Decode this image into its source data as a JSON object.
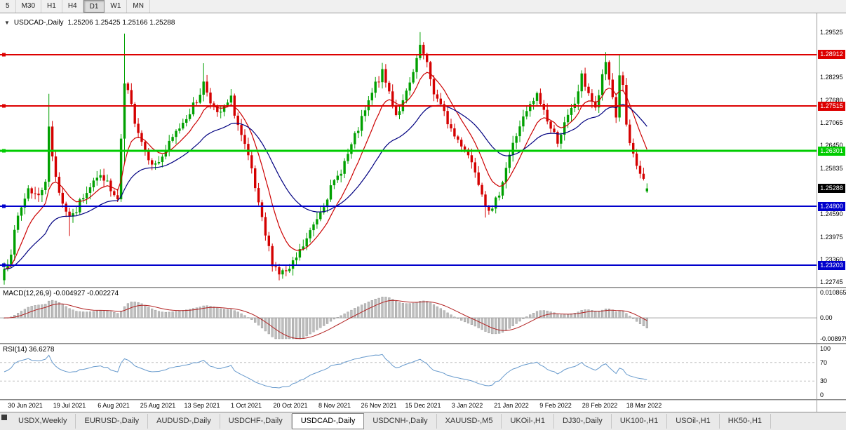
{
  "toolbar": {
    "timeframes": [
      "5",
      "M30",
      "H1",
      "H4",
      "D1",
      "W1",
      "MN"
    ],
    "active_timeframe": "D1"
  },
  "chart": {
    "title": {
      "collapse_icon": "▼",
      "symbol": "USDCAD-,Daily",
      "ohlc": "1.25206 1.25425 1.25166 1.25288"
    },
    "colors": {
      "up_candle": "#00a000",
      "down_candle": "#d40000",
      "ma_fast": "#cc0000",
      "ma_slow": "#000080"
    },
    "price_axis": {
      "min": 1.2262,
      "max": 1.3003,
      "ticks": [
        "1.29525",
        "1.28295",
        "1.27680",
        "1.27065",
        "1.26450",
        "1.25835",
        "1.24590",
        "1.23975",
        "1.23360",
        "1.22745"
      ]
    },
    "levels": [
      {
        "price": 1.28912,
        "label": "1.28912",
        "color": "#dd0000",
        "width": 2
      },
      {
        "price": 1.27515,
        "label": "1.27515",
        "color": "#dd0000",
        "width": 2
      },
      {
        "price": 1.26301,
        "label": "1.26301",
        "color": "#00cc00",
        "width": 3
      },
      {
        "price": 1.248,
        "label": "1.24800",
        "color": "#0000cc",
        "width": 2
      },
      {
        "price": 1.23203,
        "label": "1.23203",
        "color": "#0000cc",
        "width": 2
      }
    ],
    "current_price": {
      "value": 1.25288,
      "label": "1.25288",
      "badge_color": "#000000"
    },
    "moving_averages": [
      {
        "period": 10,
        "color": "#cc0000"
      },
      {
        "period": 30,
        "color": "#000080"
      }
    ],
    "candles": {
      "count": 188,
      "seed": 7,
      "anchors": [
        [
          0,
          1.231
        ],
        [
          2,
          1.236
        ],
        [
          4,
          1.245
        ],
        [
          7,
          1.253
        ],
        [
          10,
          1.2505
        ],
        [
          12,
          1.2555
        ],
        [
          13,
          1.269
        ],
        [
          14,
          1.2615
        ],
        [
          16,
          1.252
        ],
        [
          18,
          1.2465
        ],
        [
          20,
          1.245
        ],
        [
          23,
          1.251
        ],
        [
          26,
          1.2555
        ],
        [
          29,
          1.256
        ],
        [
          31,
          1.252
        ],
        [
          33,
          1.2495
        ],
        [
          35,
          1.281
        ],
        [
          36,
          1.2785
        ],
        [
          38,
          1.2715
        ],
        [
          41,
          1.263
        ],
        [
          44,
          1.259
        ],
        [
          47,
          1.263
        ],
        [
          50,
          1.268
        ],
        [
          53,
          1.2725
        ],
        [
          56,
          1.2765
        ],
        [
          58,
          1.2815
        ],
        [
          60,
          1.277
        ],
        [
          62,
          1.2725
        ],
        [
          64,
          1.2745
        ],
        [
          66,
          1.277
        ],
        [
          68,
          1.27
        ],
        [
          70,
          1.264
        ],
        [
          72,
          1.2575
        ],
        [
          74,
          1.248
        ],
        [
          76,
          1.24
        ],
        [
          78,
          1.233
        ],
        [
          80,
          1.23
        ],
        [
          83,
          1.2305
        ],
        [
          85,
          1.234
        ],
        [
          88,
          1.239
        ],
        [
          91,
          1.245
        ],
        [
          94,
          1.251
        ],
        [
          97,
          1.256
        ],
        [
          100,
          1.262
        ],
        [
          103,
          1.269
        ],
        [
          106,
          1.276
        ],
        [
          108,
          1.281
        ],
        [
          110,
          1.284
        ],
        [
          112,
          1.279
        ],
        [
          114,
          1.273
        ],
        [
          116,
          1.276
        ],
        [
          118,
          1.281
        ],
        [
          120,
          1.287
        ],
        [
          121,
          1.2915
        ],
        [
          123,
          1.286
        ],
        [
          125,
          1.279
        ],
        [
          127,
          1.275
        ],
        [
          129,
          1.271
        ],
        [
          131,
          1.267
        ],
        [
          134,
          1.264
        ],
        [
          137,
          1.258
        ],
        [
          140,
          1.249
        ],
        [
          142,
          1.2465
        ],
        [
          144,
          1.252
        ],
        [
          147,
          1.262
        ],
        [
          150,
          1.27
        ],
        [
          153,
          1.275
        ],
        [
          155,
          1.278
        ],
        [
          157,
          1.274
        ],
        [
          159,
          1.269
        ],
        [
          161,
          1.266
        ],
        [
          163,
          1.27
        ],
        [
          166,
          1.276
        ],
        [
          168,
          1.283
        ],
        [
          170,
          1.279
        ],
        [
          172,
          1.274
        ],
        [
          175,
          1.287
        ],
        [
          177,
          1.278
        ],
        [
          178,
          1.272
        ],
        [
          179,
          1.284
        ],
        [
          180,
          1.28
        ],
        [
          181,
          1.27
        ],
        [
          182,
          1.264
        ],
        [
          184,
          1.259
        ],
        [
          186,
          1.255
        ],
        [
          187,
          1.2529
        ]
      ],
      "spikes": [
        {
          "i": 13,
          "high": 1.2785
        },
        {
          "i": 19,
          "low": 1.24
        },
        {
          "i": 35,
          "high": 1.2948,
          "low": 1.2598
        },
        {
          "i": 58,
          "high": 1.2868
        },
        {
          "i": 80,
          "low": 1.228
        },
        {
          "i": 121,
          "high": 1.2952
        },
        {
          "i": 140,
          "low": 1.245
        },
        {
          "i": 175,
          "high": 1.2898
        },
        {
          "i": 179,
          "high": 1.289
        }
      ],
      "last": {
        "o": 1.25206,
        "h": 1.25425,
        "l": 1.25166,
        "c": 1.25288
      }
    },
    "dates": [
      "30 Jun 2021",
      "19 Jul 2021",
      "6 Aug 2021",
      "25 Aug 2021",
      "13 Sep 2021",
      "1 Oct 2021",
      "20 Oct 2021",
      "8 Nov 2021",
      "26 Nov 2021",
      "15 Dec 2021",
      "3 Jan 2022",
      "21 Jan 2022",
      "9 Feb 2022",
      "28 Feb 2022",
      "18 Mar 2022"
    ]
  },
  "macd": {
    "label": "MACD(12,26,9) -0.004927 -0.002274",
    "params": {
      "fast": 12,
      "slow": 26,
      "signal": 9
    },
    "axis": [
      "0.010865",
      "0.00",
      "-0.008975"
    ],
    "axis_range": {
      "max": 0.010865,
      "min": -0.008975
    },
    "colors": {
      "histogram": "#bdbdbd",
      "histogram_border": "#8f8f8f",
      "signal": "#b22222",
      "zero_line": "#a0a0a0"
    }
  },
  "rsi": {
    "label": "RSI(14) 36.6278",
    "period": 14,
    "value": 36.6278,
    "axis": [
      "100",
      "70",
      "30",
      "0"
    ],
    "levels": [
      70,
      30
    ],
    "colors": {
      "line": "#6699cc",
      "level_line": "#c0c0c0"
    }
  },
  "tabs": {
    "items": [
      "USDX,Weekly",
      "EURUSD-,Daily",
      "AUDUSD-,Daily",
      "USDCHF-,Daily",
      "USDCAD-,Daily",
      "USDCNH-,Daily",
      "XAUUSD-,M5",
      "UKOil-,H1",
      "DJ30-,Daily",
      "UK100-,H1",
      "USOil-,H1",
      "HK50-,H1"
    ],
    "active": "USDCAD-,Daily"
  }
}
